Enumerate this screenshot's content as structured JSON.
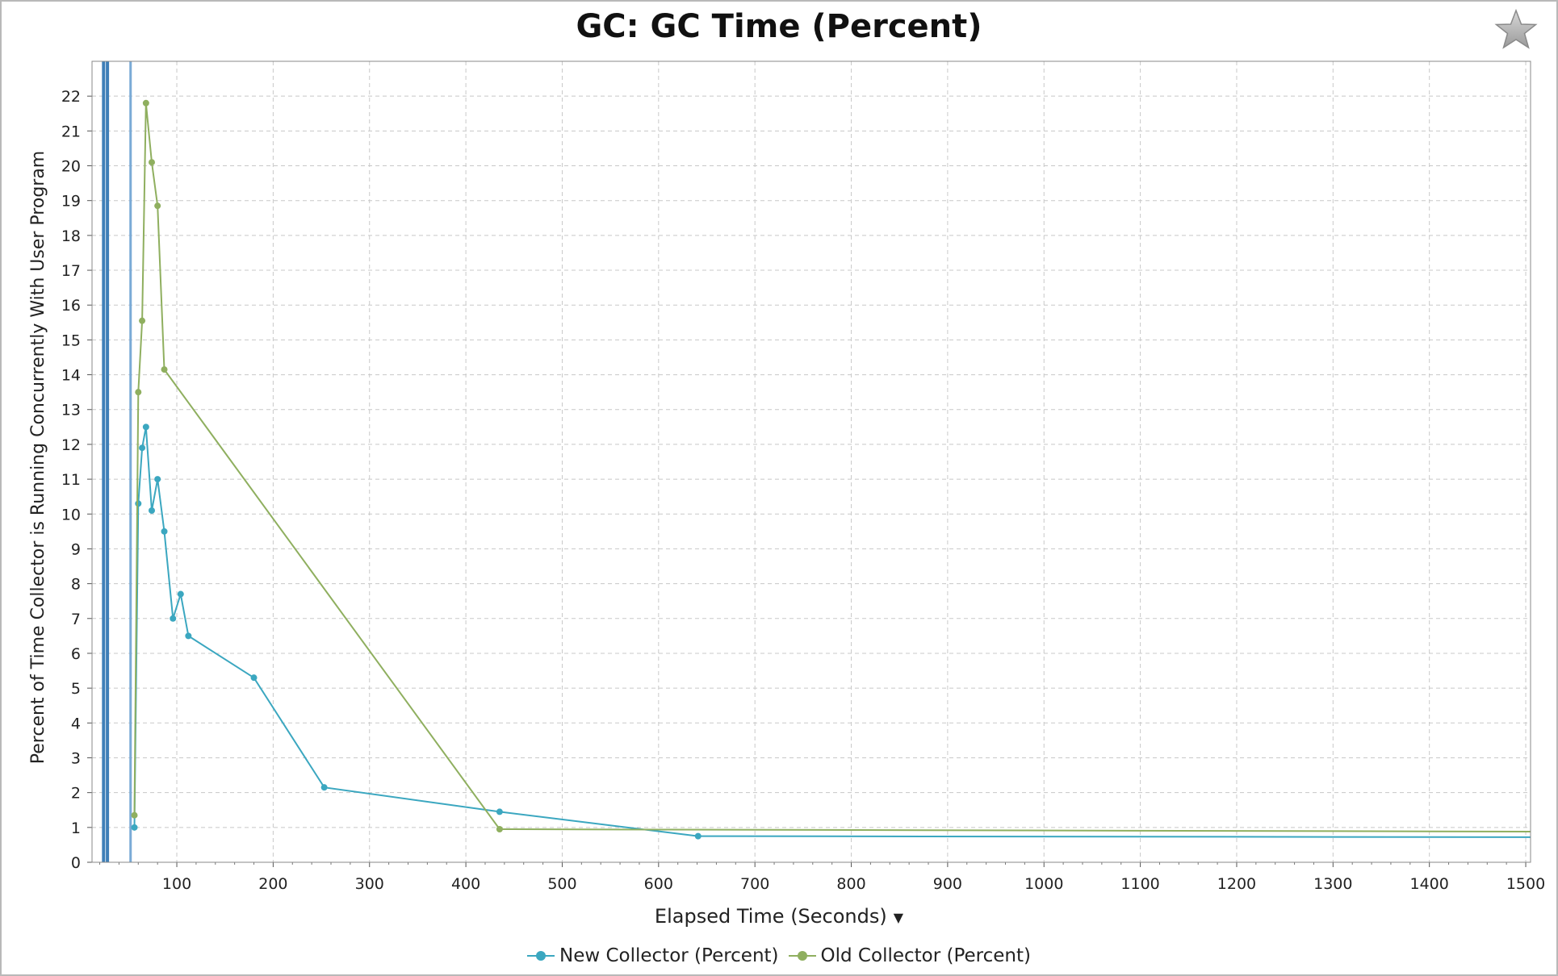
{
  "chart_data": {
    "type": "line",
    "title": "GC: GC Time (Percent)",
    "xlabel": "Elapsed Time (Seconds)",
    "ylabel": "Percent of Time Collector is Running Concurrently With User Program",
    "xlim": [
      12,
      1505
    ],
    "ylim": [
      0,
      23
    ],
    "xticks": [
      100,
      200,
      300,
      400,
      500,
      600,
      700,
      800,
      900,
      1000,
      1100,
      1200,
      1300,
      1400,
      1500
    ],
    "yticks": [
      0,
      1,
      2,
      3,
      4,
      5,
      6,
      7,
      8,
      9,
      10,
      11,
      12,
      13,
      14,
      15,
      16,
      17,
      18,
      19,
      20,
      21,
      22
    ],
    "grid": true,
    "legend_position": "bottom",
    "vertical_markers": [
      {
        "x": 24,
        "color": "#3f7fb8",
        "width": 4
      },
      {
        "x": 28,
        "color": "#3f7fb8",
        "width": 4
      },
      {
        "x": 52,
        "color": "#7aaad6",
        "width": 3
      }
    ],
    "series": [
      {
        "name": "New Collector (Percent)",
        "color": "#3ba7c0",
        "x": [
          56,
          60,
          64,
          68,
          74,
          80,
          87,
          96,
          104,
          112,
          180,
          253,
          435,
          641,
          1505
        ],
        "y": [
          1.0,
          10.3,
          11.9,
          12.5,
          10.1,
          11.0,
          9.5,
          7.0,
          7.7,
          6.5,
          5.3,
          2.15,
          1.45,
          0.75,
          0.72
        ]
      },
      {
        "name": "Old Collector (Percent)",
        "color": "#8faf5f",
        "x": [
          56,
          60,
          64,
          68,
          74,
          80,
          87,
          435,
          1505
        ],
        "y": [
          1.35,
          13.5,
          15.55,
          21.8,
          20.1,
          18.85,
          14.15,
          0.95,
          0.88
        ]
      }
    ]
  },
  "header": {
    "star_icon": "star-icon"
  }
}
